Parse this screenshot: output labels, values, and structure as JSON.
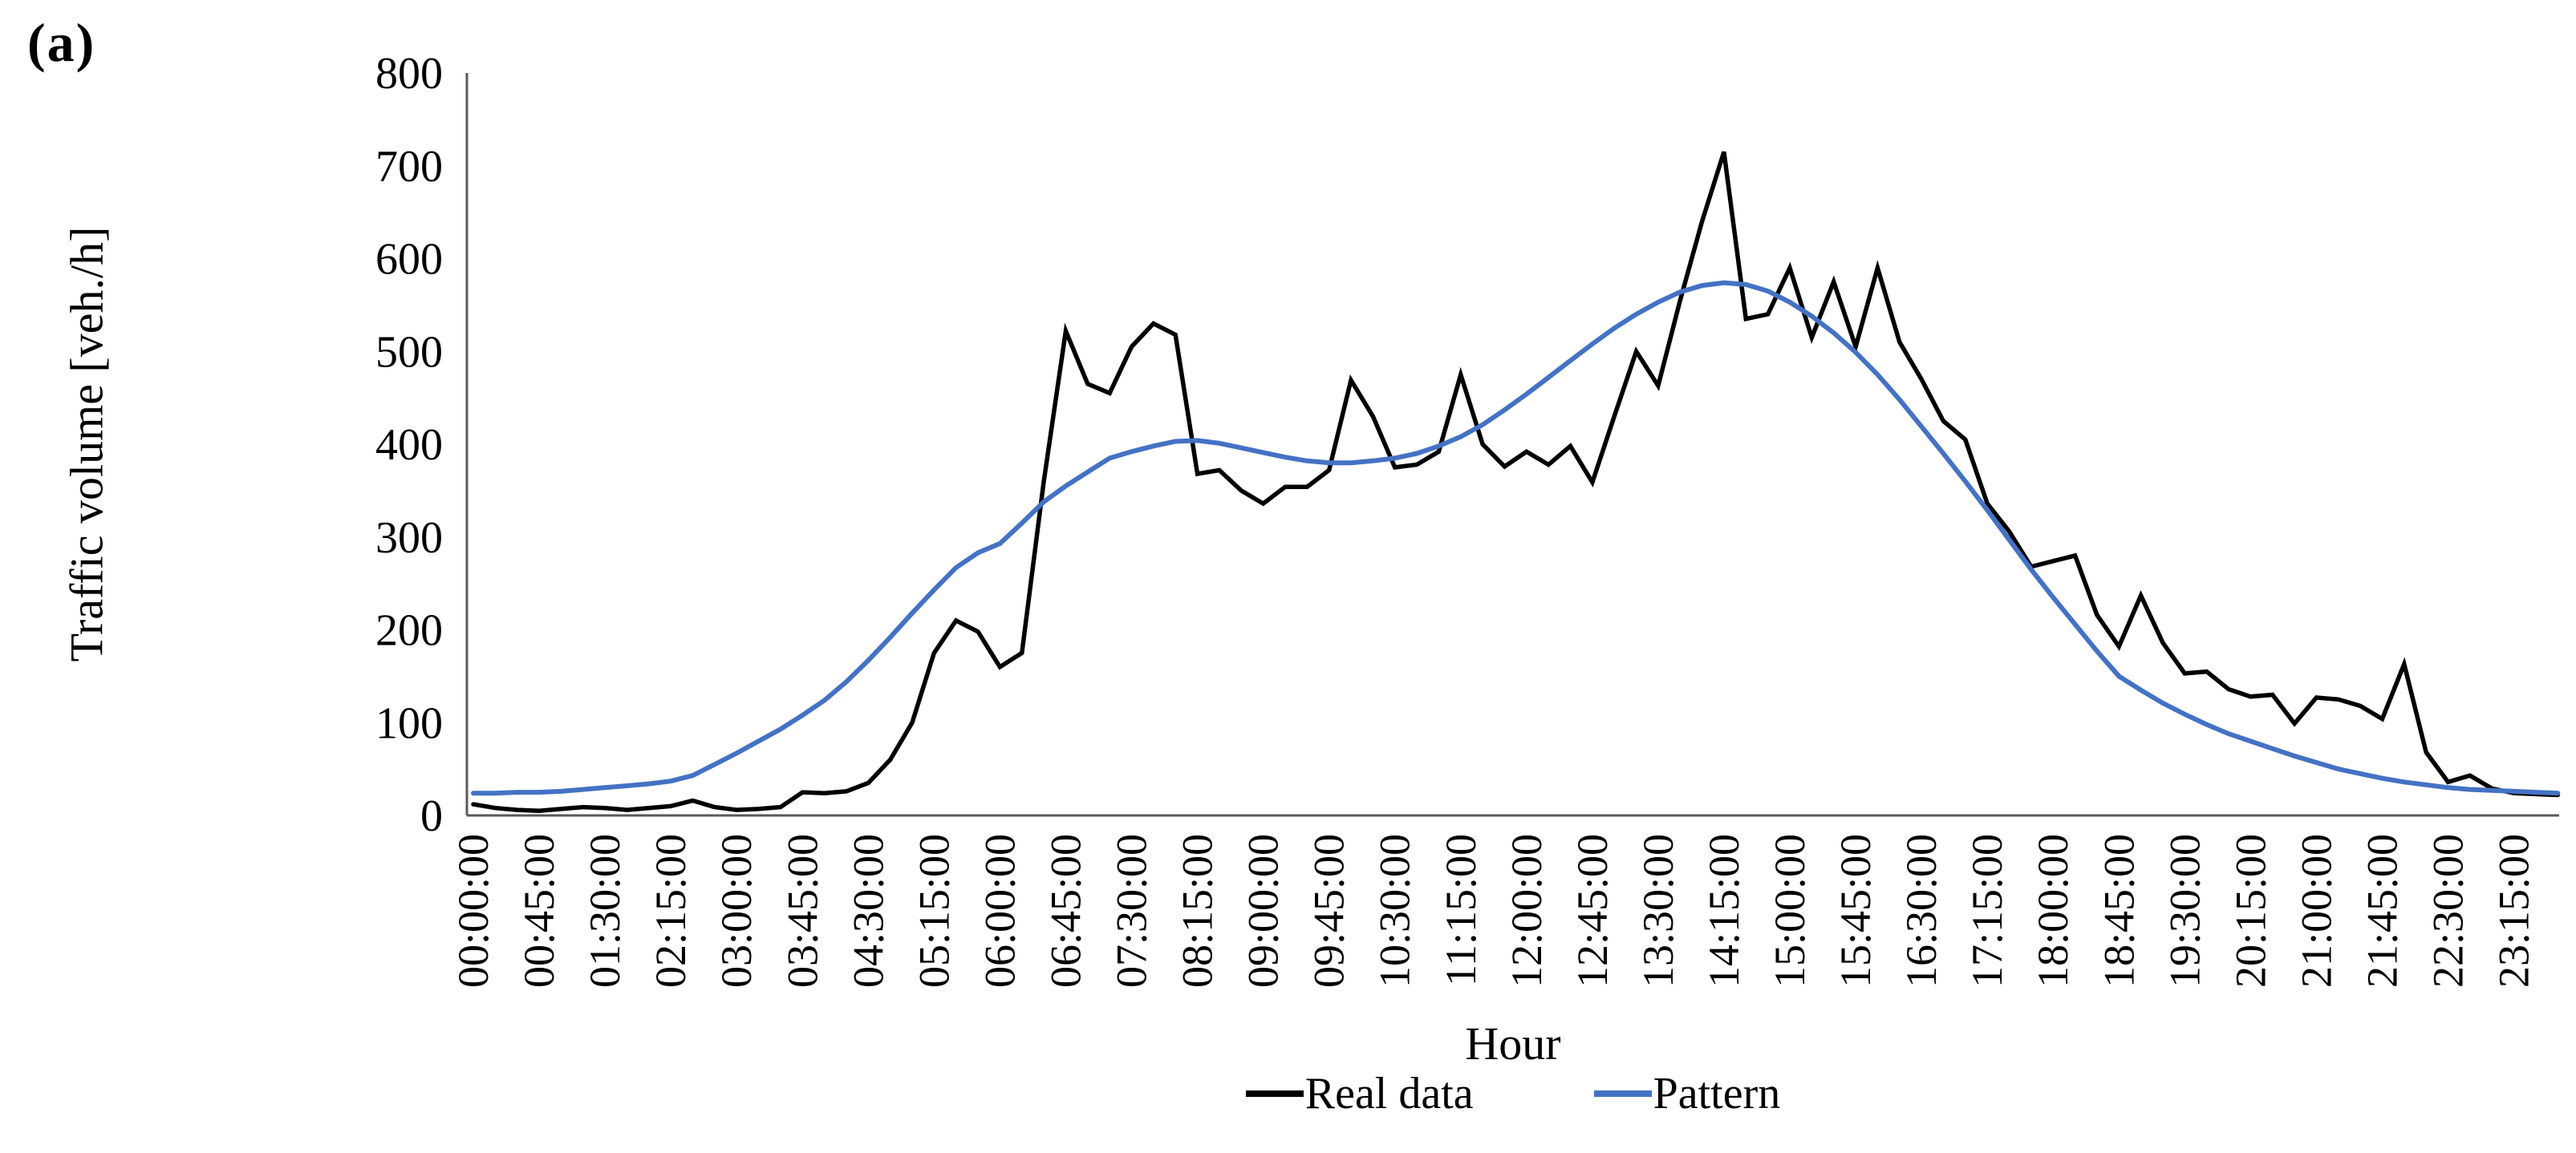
{
  "figure_label": "(a)",
  "colors": {
    "real_data_line": "#000000",
    "pattern_line": "#4472C4",
    "axis_line": "#595959",
    "text": "#000000"
  },
  "chart_data": {
    "type": "line",
    "title": "",
    "xlabel": "Hour",
    "ylabel": "Traffic volume [veh./h]",
    "ylim": [
      0,
      800
    ],
    "y_ticks": [
      0,
      100,
      200,
      300,
      400,
      500,
      600,
      700,
      800
    ],
    "grid": false,
    "legend_position": "bottom",
    "x_interval_minutes": 15,
    "label_every_n_points": 3,
    "x_tick_labels": [
      "00:00:00",
      "00:45:00",
      "01:30:00",
      "02:15:00",
      "03:00:00",
      "03:45:00",
      "04:30:00",
      "05:15:00",
      "06:00:00",
      "06:45:00",
      "07:30:00",
      "08:15:00",
      "09:00:00",
      "09:45:00",
      "10:30:00",
      "11:15:00",
      "12:00:00",
      "12:45:00",
      "13:30:00",
      "14:15:00",
      "15:00:00",
      "15:45:00",
      "16:30:00",
      "17:15:00",
      "18:00:00",
      "18:45:00",
      "19:30:00",
      "20:15:00",
      "21:00:00",
      "21:45:00",
      "22:30:00",
      "23:15:00"
    ],
    "series": [
      {
        "name": "Real data",
        "color": "#000000",
        "values": [
          12,
          8,
          6,
          5,
          7,
          9,
          8,
          6,
          8,
          10,
          16,
          9,
          6,
          7,
          9,
          25,
          24,
          26,
          35,
          60,
          100,
          175,
          210,
          198,
          160,
          175,
          360,
          522,
          465,
          455,
          505,
          530,
          518,
          368,
          372,
          350,
          336,
          354,
          354,
          372,
          469,
          430,
          375,
          378,
          392,
          475,
          400,
          376,
          392,
          378,
          398,
          359,
          430,
          500,
          463,
          555,
          640,
          715,
          535,
          540,
          590,
          515,
          575,
          505,
          590,
          510,
          470,
          425,
          405,
          336,
          306,
          268,
          274,
          280,
          216,
          182,
          237,
          186,
          153,
          155,
          136,
          128,
          130,
          99,
          127,
          125,
          118,
          104,
          163,
          68,
          36,
          43,
          29,
          24,
          23,
          22
        ]
      },
      {
        "name": "Pattern",
        "color": "#4472C4",
        "values": [
          24,
          24,
          25,
          25,
          26,
          28,
          30,
          32,
          34,
          37,
          43,
          55,
          67,
          80,
          93,
          108,
          124,
          144,
          167,
          192,
          218,
          243,
          267,
          283,
          293,
          315,
          338,
          355,
          370,
          385,
          392,
          398,
          403,
          404,
          401,
          396,
          391,
          386,
          382,
          380,
          380,
          382,
          385,
          390,
          398,
          408,
          421,
          437,
          454,
          472,
          490,
          508,
          525,
          540,
          553,
          564,
          571,
          574,
          572,
          565,
          553,
          538,
          520,
          499,
          475,
          448,
          419,
          390,
          360,
          329,
          297,
          265,
          235,
          206,
          177,
          150,
          135,
          121,
          109,
          98,
          88,
          80,
          72,
          64,
          57,
          50,
          45,
          40,
          36,
          33,
          30,
          28,
          27,
          26,
          25,
          24
        ]
      }
    ]
  },
  "legend": {
    "items": [
      {
        "label": "Real data",
        "color": "#000000"
      },
      {
        "label": "Pattern",
        "color": "#4472C4"
      }
    ]
  }
}
